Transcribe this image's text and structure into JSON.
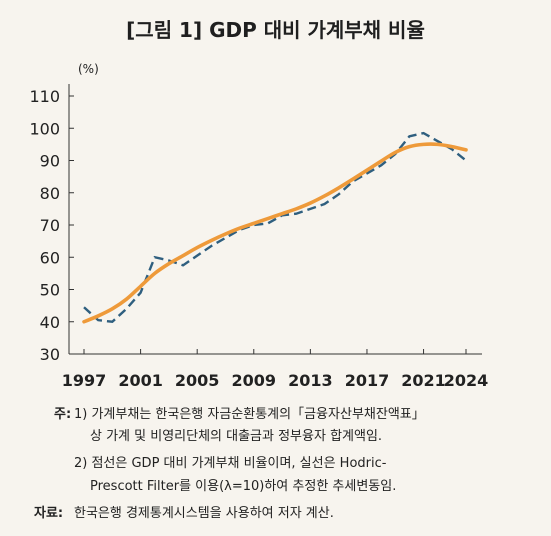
{
  "title": "[그림 1] GDP 대비 가계부채 비율",
  "chart_data": {
    "type": "line",
    "unit_label": "(%)",
    "ylim": [
      30,
      110
    ],
    "yticks": [
      "30",
      "40",
      "50",
      "60",
      "70",
      "80",
      "90",
      "100",
      "110"
    ],
    "xlim": [
      1997,
      2024
    ],
    "xticks": [
      "1997",
      "2001",
      "2005",
      "2009",
      "2013",
      "2017",
      "2021",
      "2024"
    ],
    "grid": false,
    "colors": {
      "dashed": "#2f5f7f",
      "trend": "#ee9a3a"
    },
    "series": [
      {
        "style": "dashed",
        "x": [
          1997,
          1998,
          1999,
          2000,
          2001,
          2002,
          2003,
          2004,
          2005,
          2006,
          2007,
          2008,
          2009,
          2010,
          2011,
          2012,
          2013,
          2014,
          2015,
          2016,
          2017,
          2018,
          2019,
          2020,
          2021,
          2022,
          2023,
          2024
        ],
        "values": [
          44.5,
          40.5,
          40.0,
          44.0,
          49.0,
          60.0,
          59.0,
          57.5,
          60.5,
          63.5,
          66.0,
          68.5,
          70.0,
          70.5,
          73.0,
          73.5,
          75.0,
          76.5,
          79.5,
          83.5,
          86.0,
          88.5,
          92.0,
          97.5,
          98.5,
          96.0,
          93.5,
          90.0
        ]
      },
      {
        "style": "solid",
        "x": [
          1997,
          1998,
          1999,
          2000,
          2001,
          2002,
          2003,
          2004,
          2005,
          2006,
          2007,
          2008,
          2009,
          2010,
          2011,
          2012,
          2013,
          2014,
          2015,
          2016,
          2017,
          2018,
          2019,
          2020,
          2021,
          2022,
          2023,
          2024
        ],
        "values": [
          40.0,
          41.8,
          44.0,
          47.0,
          51.0,
          55.0,
          58.0,
          60.5,
          63.0,
          65.2,
          67.2,
          69.0,
          70.5,
          72.0,
          73.5,
          75.0,
          76.8,
          79.0,
          81.5,
          84.2,
          87.0,
          89.8,
          92.5,
          94.3,
          95.0,
          95.0,
          94.3,
          93.3
        ]
      }
    ]
  },
  "notes": {
    "label_note": "주:",
    "note1_line1": "1) 가계부채는 한국은행 자금순환통계의「금융자산부채잔액표」",
    "note1_line2": "상 가계 및 비영리단체의 대출금과 정부융자 합계액임.",
    "note2_line1": "2) 점선은 GDP 대비 가계부채 비율이며, 실선은 Hodric-",
    "note2_line2": "Prescott Filter를 이용(λ=10)하여 추정한 추세변동임.",
    "label_source": "자료:",
    "source": "한국은행 경제통계시스템을 사용하여 저자 계산."
  }
}
